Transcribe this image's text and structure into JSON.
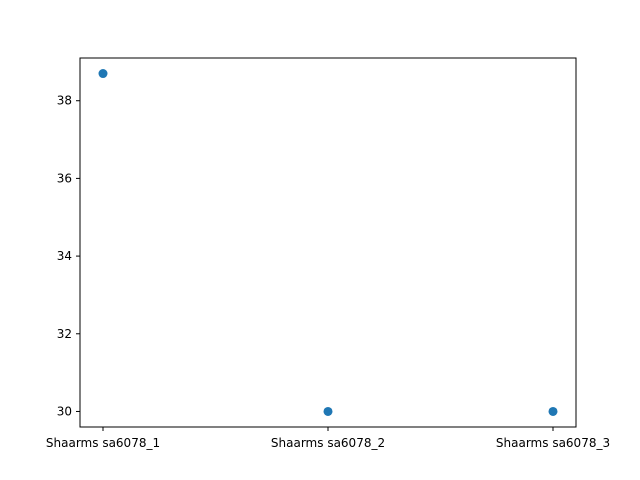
{
  "chart_data": {
    "type": "scatter",
    "categories": [
      "Shaarms sa6078_1",
      "Shaarms sa6078_2",
      "Shaarms sa6078_3"
    ],
    "values": [
      38.7,
      30.0,
      30.0
    ],
    "title": "",
    "xlabel": "",
    "ylabel": "",
    "ylim": [
      29.6,
      39.1
    ],
    "yticks": [
      "30",
      "32",
      "34",
      "36",
      "38"
    ],
    "grid": false,
    "marker_color": "#1f77b4"
  }
}
